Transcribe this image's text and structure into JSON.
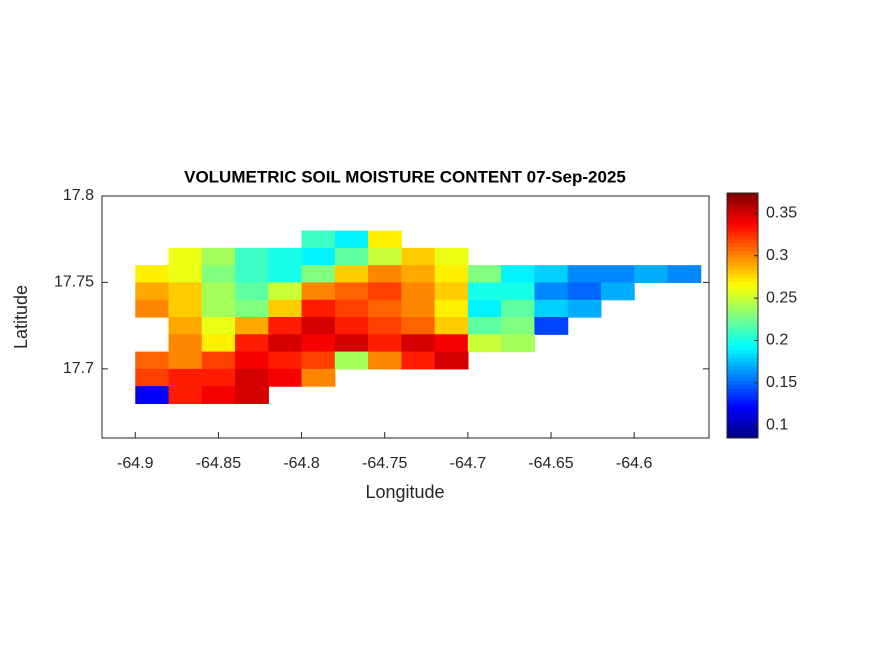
{
  "chart_data": {
    "type": "heatmap",
    "title": "VOLUMETRIC SOIL MOISTURE CONTENT 07-Sep-2025",
    "xlabel": "Longitude",
    "ylabel": "Latitude",
    "x": [
      -64.89,
      -64.87,
      -64.85,
      -64.83,
      -64.81,
      -64.79,
      -64.77,
      -64.75,
      -64.73,
      -64.71,
      -64.69,
      -64.67,
      -64.65,
      -64.63,
      -64.61,
      -64.59,
      -64.57
    ],
    "y": [
      17.775,
      17.765,
      17.755,
      17.745,
      17.735,
      17.725,
      17.715,
      17.705,
      17.695,
      17.685
    ],
    "z": [
      [
        null,
        null,
        null,
        null,
        null,
        0.21,
        0.19,
        0.27,
        null,
        null,
        null,
        null,
        null,
        null,
        null,
        null,
        null
      ],
      [
        null,
        0.26,
        0.24,
        0.21,
        0.2,
        0.19,
        0.22,
        0.25,
        0.28,
        0.26,
        null,
        null,
        null,
        null,
        null,
        null,
        null
      ],
      [
        0.27,
        0.26,
        0.23,
        0.21,
        0.2,
        0.23,
        0.28,
        0.3,
        0.29,
        0.27,
        0.23,
        0.19,
        0.18,
        0.16,
        0.16,
        0.17,
        0.16
      ],
      [
        0.29,
        0.28,
        0.24,
        0.22,
        0.25,
        0.3,
        0.31,
        0.32,
        0.3,
        0.28,
        0.2,
        0.2,
        0.16,
        0.15,
        0.17,
        null,
        null
      ],
      [
        0.3,
        0.28,
        0.24,
        0.23,
        0.28,
        0.33,
        0.32,
        0.31,
        0.3,
        0.27,
        0.19,
        0.22,
        0.18,
        0.17,
        null,
        null,
        null
      ],
      [
        null,
        0.29,
        0.26,
        0.29,
        0.33,
        0.35,
        0.33,
        0.32,
        0.31,
        0.28,
        0.22,
        0.23,
        0.14,
        null,
        null,
        null,
        null
      ],
      [
        null,
        0.3,
        0.27,
        0.33,
        0.35,
        0.34,
        0.35,
        0.33,
        0.35,
        0.34,
        0.25,
        0.24,
        null,
        null,
        null,
        null,
        null
      ],
      [
        0.31,
        0.3,
        0.32,
        0.34,
        0.33,
        0.32,
        0.24,
        0.3,
        0.33,
        0.35,
        null,
        null,
        null,
        null,
        null,
        null,
        null
      ],
      [
        0.32,
        0.33,
        0.33,
        0.35,
        0.34,
        0.3,
        null,
        null,
        null,
        null,
        null,
        null,
        null,
        null,
        null,
        null,
        null
      ],
      [
        0.12,
        0.33,
        0.34,
        0.35,
        null,
        null,
        null,
        null,
        null,
        null,
        null,
        null,
        null,
        null,
        null,
        null,
        null
      ]
    ],
    "xlim": [
      -64.92,
      -64.555
    ],
    "ylim": [
      17.66,
      17.8
    ],
    "xticks": [
      -64.9,
      -64.85,
      -64.8,
      -64.75,
      -64.7,
      -64.65,
      -64.6
    ],
    "yticks": [
      17.7,
      17.75,
      17.8
    ],
    "colorbar": {
      "colormap": "jet",
      "clim": [
        0.085,
        0.374
      ],
      "ticks": [
        0.1,
        0.15,
        0.2,
        0.25,
        0.3,
        0.35
      ]
    }
  }
}
